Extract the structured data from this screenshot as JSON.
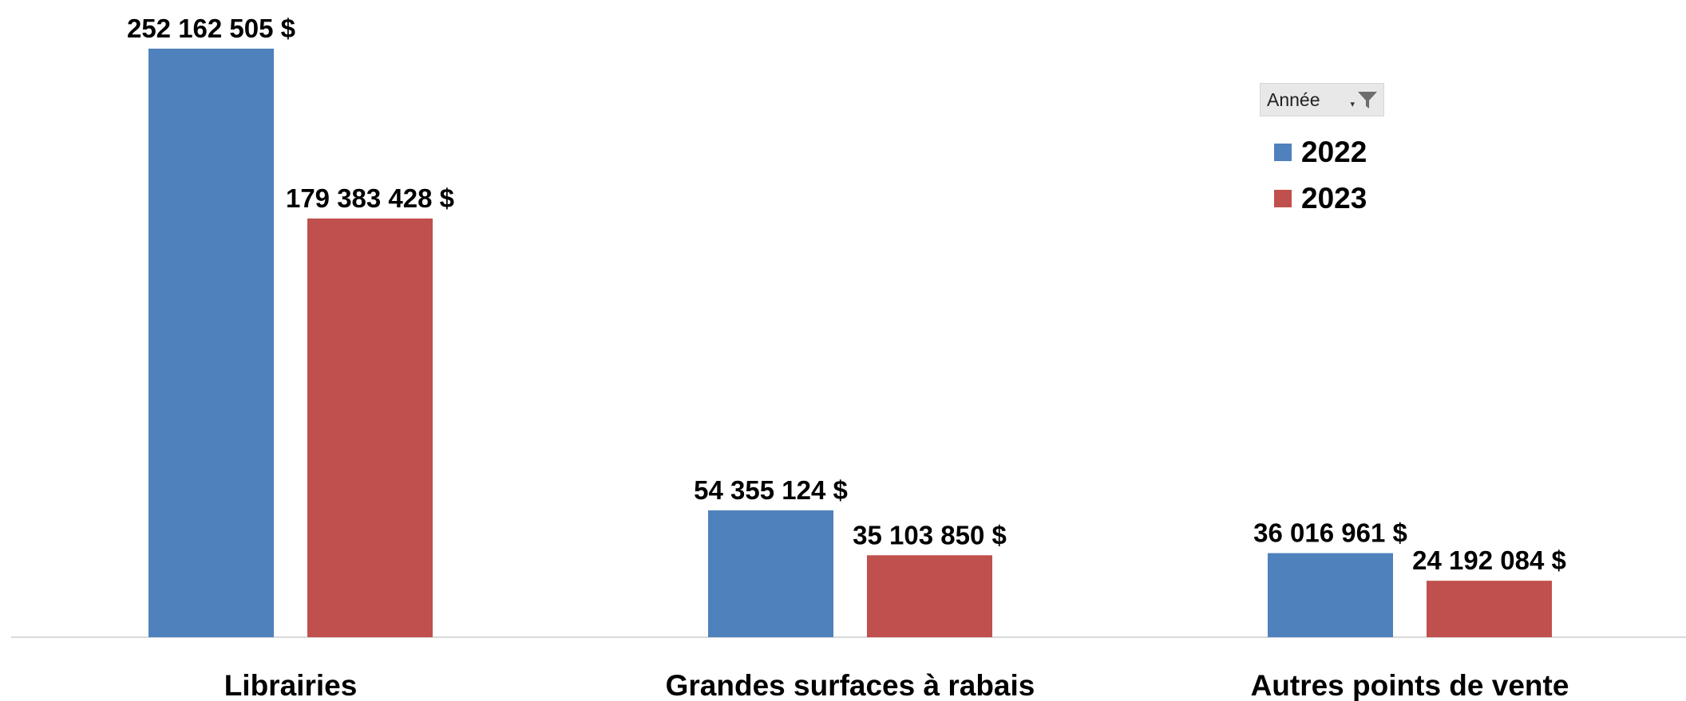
{
  "colors": {
    "series_2022": "#4f81bd",
    "series_2023": "#c0504d",
    "axis": "#d9d9d9"
  },
  "legend": {
    "field_label": "Année",
    "filter_icon": "filter-icon",
    "dropdown_icon": "dropdown-arrow-icon",
    "items": [
      {
        "label": "2022",
        "color": "#4f81bd"
      },
      {
        "label": "2023",
        "color": "#c0504d"
      }
    ]
  },
  "chart_data": {
    "type": "bar",
    "categories": [
      "Librairies",
      "Grandes surfaces à rabais",
      "Autres points de vente"
    ],
    "series": [
      {
        "name": "2022",
        "values": [
          252162505,
          54355124,
          36016961
        ],
        "labels": [
          "252 162 505 $",
          "54 355 124 $",
          "36 016 961 $"
        ]
      },
      {
        "name": "2023",
        "values": [
          179383428,
          35103850,
          24192084
        ],
        "labels": [
          "179 383 428 $",
          "35 103 850 $",
          "24 192 084 $"
        ]
      }
    ],
    "title": "",
    "xlabel": "",
    "ylabel": "",
    "ylim": [
      0,
      252162505
    ],
    "grid": false,
    "legend_position": "top-right"
  }
}
